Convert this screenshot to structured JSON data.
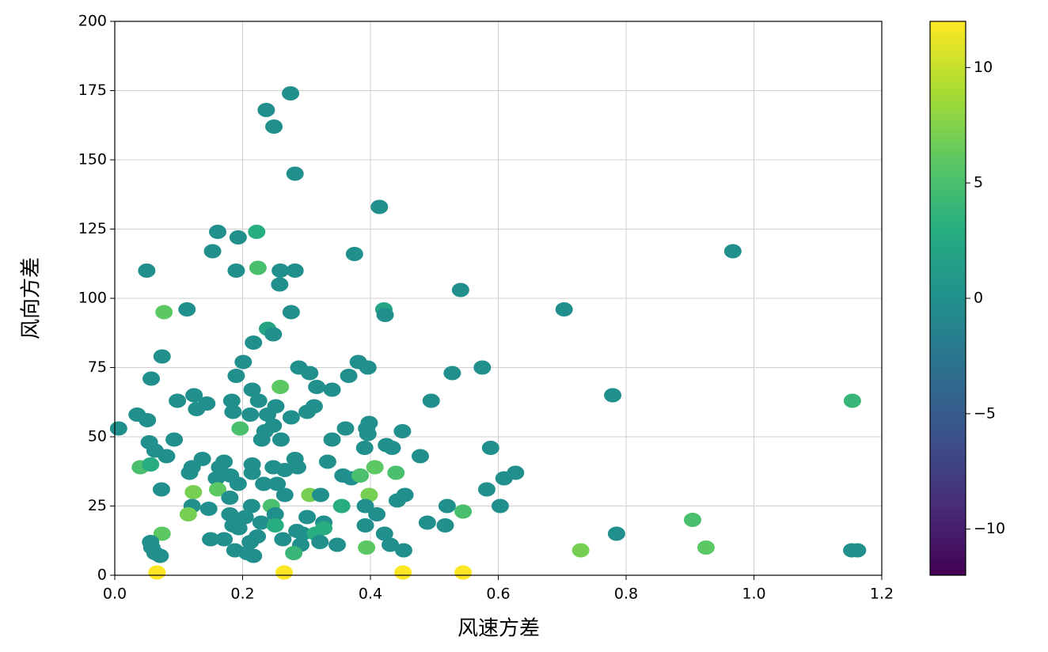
{
  "chart_data": {
    "type": "scatter",
    "xlabel": "风速方差",
    "ylabel": "风向方差",
    "x": [
      0.006,
      0.05,
      0.275,
      0.237,
      0.249,
      0.282,
      0.414,
      0.161,
      0.193,
      0.222,
      0.153,
      0.375,
      0.967,
      0.19,
      0.224,
      0.259,
      0.282,
      0.258,
      0.113,
      0.077,
      0.276,
      0.421,
      0.423,
      0.541,
      0.703,
      0.239,
      0.248,
      0.217,
      0.074,
      0.201,
      0.057,
      0.19,
      0.288,
      0.305,
      0.381,
      0.396,
      0.366,
      0.34,
      0.316,
      0.259,
      0.528,
      0.575,
      0.779,
      1.154,
      0.495,
      0.098,
      0.124,
      0.144,
      0.128,
      0.183,
      0.215,
      0.225,
      0.252,
      0.312,
      0.301,
      0.035,
      0.051,
      0.185,
      0.212,
      0.239,
      0.276,
      0.248,
      0.235,
      0.196,
      0.26,
      0.23,
      0.34,
      0.361,
      0.394,
      0.398,
      0.396,
      0.425,
      0.434,
      0.45,
      0.391,
      0.478,
      0.588,
      0.054,
      0.093,
      0.063,
      0.081,
      0.137,
      0.121,
      0.117,
      0.171,
      0.164,
      0.159,
      0.181,
      0.215,
      0.248,
      0.266,
      0.286,
      0.282,
      0.333,
      0.04,
      0.056,
      0.357,
      0.37,
      0.384,
      0.407,
      0.44,
      0.609,
      0.627,
      0.073,
      0.161,
      0.193,
      0.215,
      0.233,
      0.254,
      0.266,
      0.305,
      0.322,
      0.398,
      0.442,
      0.454,
      0.582,
      0.123,
      0.18,
      0.121,
      0.147,
      0.214,
      0.245,
      0.355,
      0.392,
      0.52,
      0.545,
      0.603,
      0.115,
      0.18,
      0.204,
      0.251,
      0.301,
      0.327,
      0.41,
      0.489,
      0.517,
      0.904,
      0.185,
      0.229,
      0.251,
      0.194,
      0.285,
      0.294,
      0.314,
      0.327,
      0.392,
      0.422,
      0.785,
      0.074,
      0.056,
      0.058,
      0.15,
      0.171,
      0.212,
      0.223,
      0.263,
      0.291,
      0.321,
      0.348,
      0.394,
      0.431,
      0.188,
      0.207,
      0.217,
      0.063,
      0.071,
      0.28,
      0.452,
      0.729,
      0.925,
      1.153,
      1.162,
      0.066,
      0.265,
      0.451,
      0.545
    ],
    "values": [
      53,
      110,
      174,
      168,
      162,
      145,
      133,
      124,
      122,
      124,
      117,
      116,
      117,
      110,
      111,
      110,
      110,
      105,
      96,
      95,
      95,
      96,
      94,
      103,
      96,
      89,
      87,
      84,
      79,
      77,
      71,
      72,
      75,
      73,
      77,
      75,
      72,
      67,
      68,
      68,
      73,
      75,
      65,
      63,
      63,
      63,
      65,
      62,
      60,
      63,
      67,
      63,
      61,
      61,
      59,
      58,
      56,
      59,
      58,
      58,
      57,
      54,
      52,
      53,
      49,
      49,
      49,
      53,
      53,
      55,
      51,
      47,
      46,
      52,
      46,
      43,
      46,
      48,
      49,
      45,
      43,
      42,
      39,
      37,
      41,
      39,
      35,
      36,
      40,
      39,
      38,
      39,
      42,
      41,
      39,
      40,
      36,
      35,
      36,
      39,
      37,
      35,
      37,
      31,
      31,
      33,
      37,
      33,
      33,
      29,
      29,
      29,
      29,
      27,
      29,
      31,
      30,
      28,
      25,
      24,
      25,
      25,
      25,
      25,
      25,
      23,
      25,
      22,
      22,
      21,
      22,
      21,
      19,
      22,
      19,
      18,
      20,
      18,
      19,
      18,
      17,
      16,
      15,
      15,
      17,
      18,
      15,
      15,
      15,
      12,
      10,
      13,
      13,
      12,
      14,
      13,
      11,
      12,
      11,
      10,
      11,
      9,
      8,
      7,
      8,
      7,
      8,
      9,
      9,
      10,
      9,
      9,
      1,
      1,
      1,
      1
    ],
    "c": [
      0,
      0,
      0,
      0,
      0,
      0,
      0,
      0,
      0,
      3,
      0,
      0,
      0,
      0,
      5,
      0,
      0,
      0,
      0,
      6,
      0,
      2,
      0,
      0,
      0,
      2,
      0,
      0,
      0,
      0,
      0,
      0,
      0,
      0,
      0,
      0,
      0,
      0,
      0,
      6,
      0,
      0,
      0,
      4,
      0,
      0,
      0,
      0,
      0,
      0,
      0,
      0,
      0,
      0,
      0,
      0,
      0,
      0,
      0,
      0,
      0,
      0,
      0,
      5,
      0,
      0,
      0,
      0,
      0,
      0,
      0,
      0,
      0,
      0,
      0,
      0,
      0,
      0,
      0,
      0,
      0,
      0,
      0,
      0,
      0,
      0,
      0,
      0,
      0,
      0,
      0,
      0,
      0,
      0,
      5,
      3,
      0,
      0,
      5,
      6,
      5,
      0,
      0,
      0,
      6,
      0,
      0,
      0,
      0,
      0,
      7,
      0,
      7,
      0,
      0,
      0,
      7,
      0,
      0,
      0,
      0,
      5,
      3,
      0,
      0,
      5,
      0,
      7,
      0,
      0,
      0,
      0,
      0,
      0,
      0,
      0,
      5,
      0,
      0,
      3,
      0,
      0,
      0,
      3,
      3,
      0,
      0,
      0,
      6,
      0,
      0,
      0,
      0,
      0,
      0,
      0,
      0,
      0,
      0,
      6,
      0,
      0,
      0,
      0,
      0,
      0,
      4,
      0,
      7,
      6,
      0,
      0,
      12,
      12,
      12,
      12
    ],
    "xlim": [
      0,
      1.2
    ],
    "ylim": [
      0,
      200
    ],
    "xticks": [
      {
        "value": 0,
        "label": "0.0"
      },
      0.2,
      0.4,
      0.6,
      0.8,
      {
        "value": 1,
        "label": "1.0"
      },
      1.2
    ],
    "yticks": [
      0,
      25,
      50,
      75,
      100,
      125,
      150,
      175,
      200
    ],
    "grid": true,
    "colorbar": {
      "cmap": "viridis",
      "lim": [
        -12,
        12
      ],
      "ticks": [
        10,
        5,
        0,
        {
          "value": -5,
          "label": "−5"
        },
        {
          "value": -10,
          "label": "−10"
        }
      ]
    }
  }
}
